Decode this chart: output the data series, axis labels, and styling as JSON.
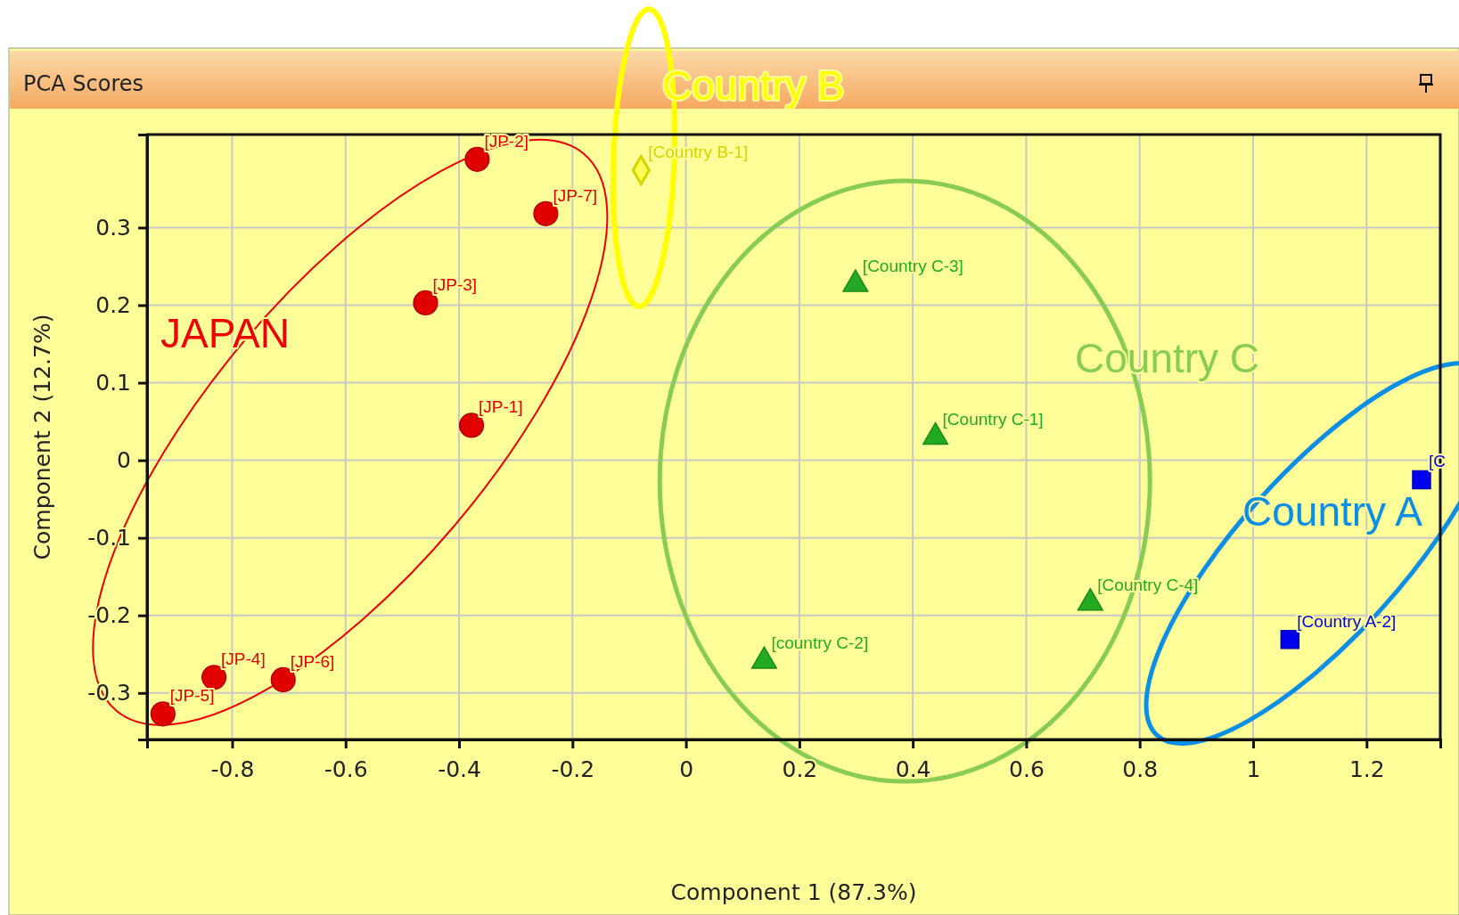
{
  "chart_data": {
    "type": "scatter",
    "title": "PCA Scores",
    "xlabel": "Component 1 (87.3%)",
    "ylabel": "Component 2 (12.7%)",
    "xlim": [
      -0.95,
      1.33
    ],
    "ylim": [
      -0.36,
      0.42
    ],
    "xticks": [
      -0.8,
      -0.6,
      -0.4,
      -0.2,
      0,
      0.2,
      0.4,
      0.6,
      0.8,
      1,
      1.2
    ],
    "yticks": [
      -0.3,
      -0.2,
      -0.1,
      0,
      0.1,
      0.2,
      0.3
    ],
    "grid": true,
    "annotations": [
      "JAPAN",
      "Country B",
      "Country C",
      "Country A"
    ],
    "series": [
      {
        "color": "#e00000",
        "marker": "circle",
        "x": [
          -0.368,
          -0.247,
          -0.459,
          -0.378,
          -0.832,
          -0.71,
          -0.922
        ],
        "values": [
          0.388,
          0.318,
          0.203,
          0.045,
          -0.28,
          -0.283,
          -0.327
        ],
        "value_labels": [
          "[JP-2]",
          "[JP-7]",
          "[JP-3]",
          "[JP-1]",
          "[JP-4]",
          "[JP-6]",
          "[JP-5]"
        ]
      },
      {
        "color": "#d4d400",
        "marker": "diamond",
        "x": [
          -0.079
        ],
        "values": [
          0.374
        ],
        "value_labels": [
          "[Country B-1]"
        ]
      },
      {
        "color": "#22aa22",
        "marker": "triangle",
        "x": [
          0.299,
          0.44,
          0.713,
          0.138
        ],
        "values": [
          0.227,
          0.03,
          -0.184,
          -0.259
        ],
        "value_labels": [
          "[Country C-3]",
          "[Country C-1]",
          "[Country C-4]",
          "[country C-2]"
        ]
      },
      {
        "color": "#0000ee",
        "marker": "square",
        "x": [
          1.297,
          1.065
        ],
        "values": [
          -0.025,
          -0.231
        ],
        "value_labels": [
          "[C",
          "[Country A-2]"
        ]
      }
    ]
  }
}
